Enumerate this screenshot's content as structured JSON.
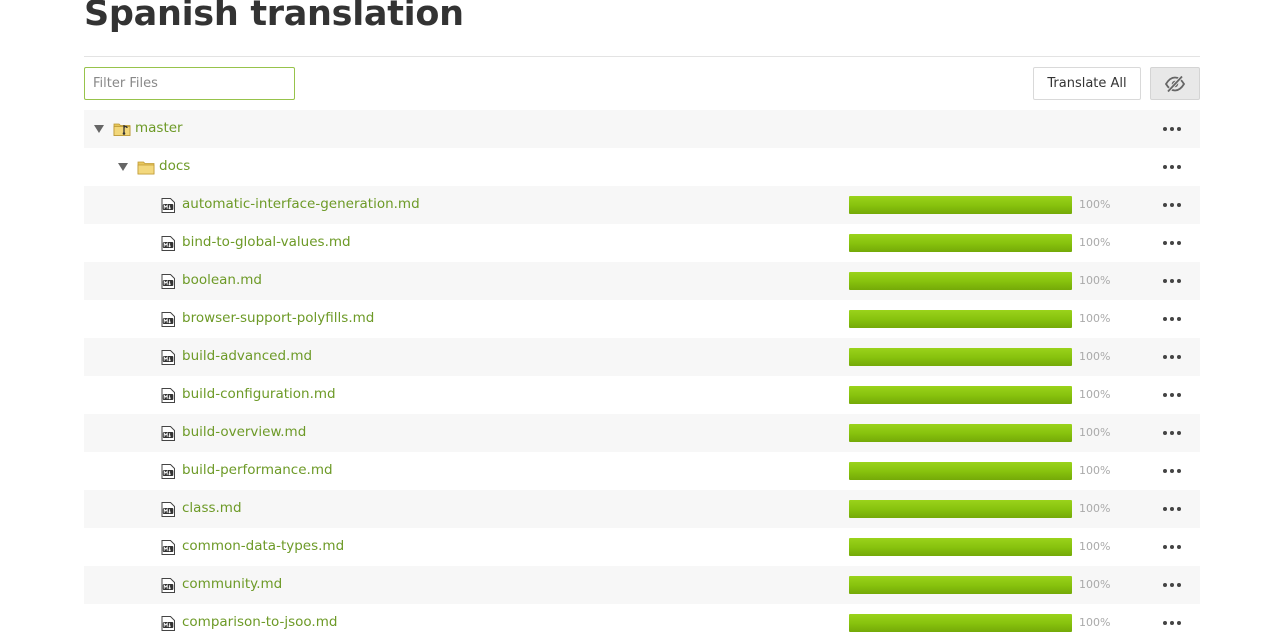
{
  "page": {
    "title": "Spanish translation"
  },
  "toolbar": {
    "filter_placeholder": "Filter Files",
    "filter_value": "",
    "translate_all_label": "Translate All",
    "hide_icon": "eye-slash-icon"
  },
  "tree": {
    "branch": {
      "label": "master",
      "icon": "branch-folder-icon",
      "expanded": true
    },
    "folder": {
      "label": "docs",
      "icon": "folder-icon",
      "expanded": true
    },
    "files": [
      {
        "name": "automatic-interface-generation.md",
        "icon": "markdown-file-icon",
        "progress": 100,
        "progress_label": "100%"
      },
      {
        "name": "bind-to-global-values.md",
        "icon": "markdown-file-icon",
        "progress": 100,
        "progress_label": "100%"
      },
      {
        "name": "boolean.md",
        "icon": "markdown-file-icon",
        "progress": 100,
        "progress_label": "100%"
      },
      {
        "name": "browser-support-polyfills.md",
        "icon": "markdown-file-icon",
        "progress": 100,
        "progress_label": "100%"
      },
      {
        "name": "build-advanced.md",
        "icon": "markdown-file-icon",
        "progress": 100,
        "progress_label": "100%"
      },
      {
        "name": "build-configuration.md",
        "icon": "markdown-file-icon",
        "progress": 100,
        "progress_label": "100%"
      },
      {
        "name": "build-overview.md",
        "icon": "markdown-file-icon",
        "progress": 100,
        "progress_label": "100%"
      },
      {
        "name": "build-performance.md",
        "icon": "markdown-file-icon",
        "progress": 100,
        "progress_label": "100%"
      },
      {
        "name": "class.md",
        "icon": "markdown-file-icon",
        "progress": 100,
        "progress_label": "100%"
      },
      {
        "name": "common-data-types.md",
        "icon": "markdown-file-icon",
        "progress": 100,
        "progress_label": "100%"
      },
      {
        "name": "community.md",
        "icon": "markdown-file-icon",
        "progress": 100,
        "progress_label": "100%"
      },
      {
        "name": "comparison-to-jsoo.md",
        "icon": "markdown-file-icon",
        "progress": 100,
        "progress_label": "100%"
      }
    ]
  },
  "colors": {
    "link": "#6d9a27",
    "progress_fill": "#86c10d",
    "filter_border": "#97c34b",
    "stripe": "#f7f7f7"
  }
}
